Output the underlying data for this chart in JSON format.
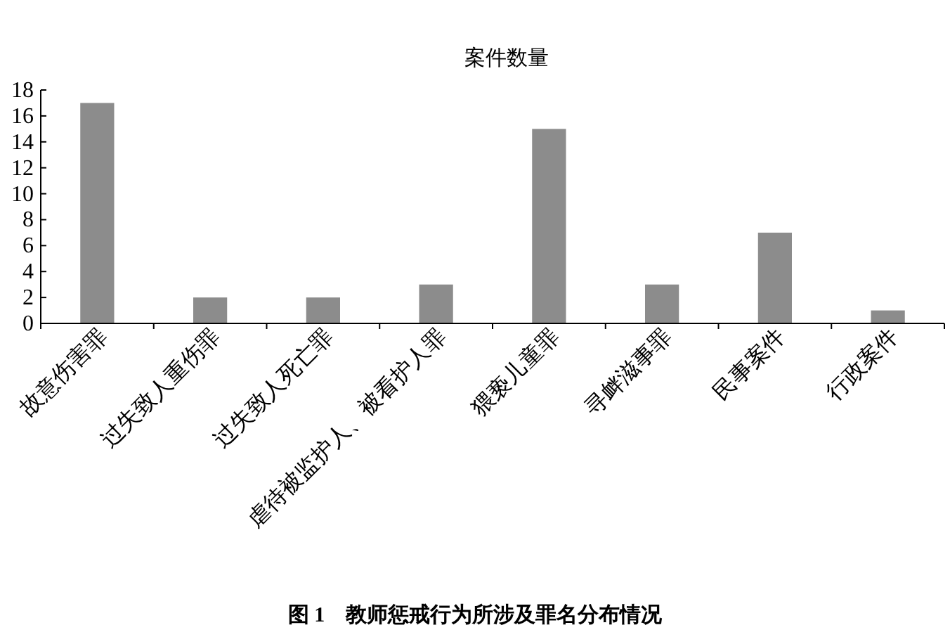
{
  "chart_data": {
    "type": "bar",
    "title": "案件数量",
    "categories": [
      "故意伤害罪",
      "过失致人重伤罪",
      "过失致人死亡罪",
      "虐待被监护人、被看护人罪",
      "猥亵儿童罪",
      "寻衅滋事罪",
      "民事案件",
      "行政案件"
    ],
    "values": [
      17,
      2,
      2,
      3,
      15,
      3,
      7,
      1
    ],
    "color": "#8c8c8c",
    "ylim": [
      0,
      18
    ],
    "yticks": [
      0,
      2,
      4,
      6,
      8,
      10,
      12,
      14,
      16,
      18
    ],
    "grid": false,
    "annotations": [
      "图 1　教师惩戒行为所涉及罪名分布情况"
    ]
  }
}
